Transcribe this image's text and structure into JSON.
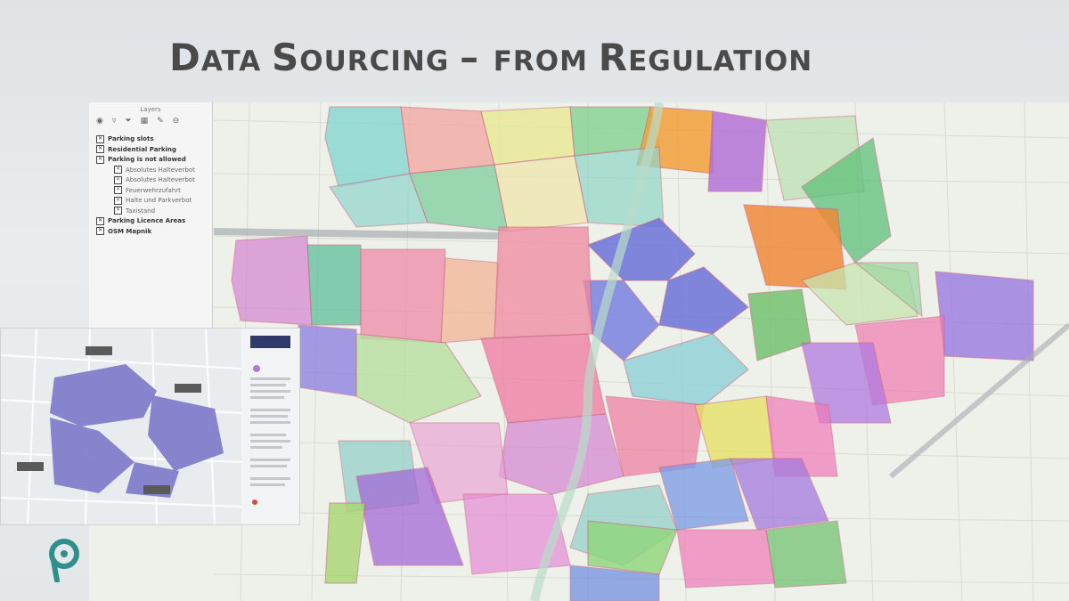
{
  "slide": {
    "title_parts": [
      "D",
      "ATA ",
      "S",
      "OURCING ",
      "– ",
      "FROM ",
      "R",
      "EGULATION"
    ],
    "title": "Data Sourcing – from Regulation"
  },
  "layer_panel": {
    "title": "Layers",
    "toolbar_icons": [
      "eye-icon",
      "filter-icon",
      "funnel-icon",
      "table-icon",
      "edit-icon",
      "remove-icon"
    ],
    "items": [
      {
        "label": "Parking slots",
        "level": 0,
        "bold": true
      },
      {
        "label": "Residential Parking",
        "level": 0,
        "bold": true
      },
      {
        "label": "Parking is not allowed",
        "level": 0,
        "bold": true
      },
      {
        "label": "Absolutes Halteverbot",
        "level": 1,
        "bold": false
      },
      {
        "label": "Absolutes Halteverbot",
        "level": 1,
        "bold": false
      },
      {
        "label": "Feuerwehrzufahrt",
        "level": 1,
        "bold": false
      },
      {
        "label": "Halte und Parkverbot",
        "level": 1,
        "bold": false
      },
      {
        "label": "Taxistand",
        "level": 1,
        "bold": false
      },
      {
        "label": "Parking Licence Areas",
        "level": 0,
        "bold": true
      },
      {
        "label": "OSM Mapnik",
        "level": 0,
        "bold": true
      }
    ]
  },
  "colors": {
    "title": "#4a4a4a",
    "slide_bg": "#e6e9eb",
    "brand_teal": "#2f8f8c"
  }
}
